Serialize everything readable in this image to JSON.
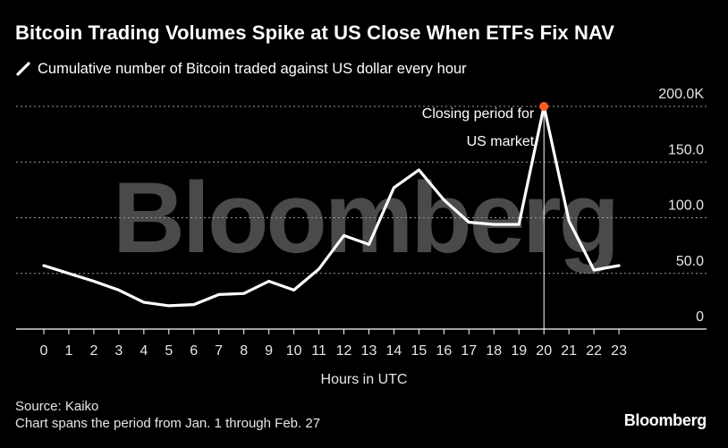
{
  "header": {
    "title": "Bitcoin Trading Volumes Spike at US Close When ETFs Fix NAV"
  },
  "legend": {
    "label": "Cumulative number of Bitcoin traded against US dollar every hour"
  },
  "watermark": {
    "text": "Bloomberg"
  },
  "footer": {
    "source": "Source: Kaiko",
    "note": "Chart spans the period from Jan. 1 through Feb. 27"
  },
  "brand": {
    "logo_text": "Bloomberg"
  },
  "colors": {
    "background": "#000000",
    "line": "#ffffff",
    "marker": "#ff5a1f",
    "grid": "#9a9a9a",
    "watermark": "#4a4a4a"
  },
  "chart_data": {
    "type": "line",
    "xlabel": "Hours in UTC",
    "ylabel": "",
    "x": [
      0,
      1,
      2,
      3,
      4,
      5,
      6,
      7,
      8,
      9,
      10,
      11,
      12,
      13,
      14,
      15,
      16,
      17,
      18,
      19,
      20,
      21,
      22,
      23
    ],
    "series": [
      {
        "values": [
          57,
          50,
          43,
          35,
          24,
          21,
          22,
          31,
          32,
          43,
          35,
          54,
          84,
          76,
          127,
          143,
          116,
          96,
          94,
          94,
          200,
          97,
          53,
          57
        ]
      }
    ],
    "ylim": [
      0,
      200
    ],
    "y_ticks": [
      0,
      50,
      100,
      150,
      200
    ],
    "y_tick_labels": [
      "0",
      "50.0",
      "100.0",
      "150.0",
      "200.0K"
    ],
    "grid": true,
    "annotation": {
      "x": 20,
      "lines": [
        "Closing period for",
        "US market"
      ]
    }
  }
}
